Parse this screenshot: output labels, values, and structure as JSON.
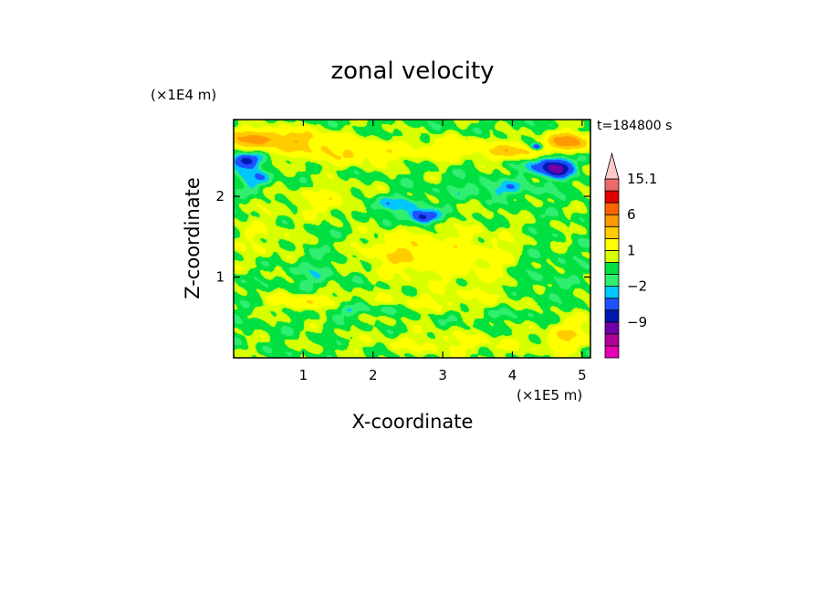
{
  "chart_data": {
    "type": "heatmap",
    "title": "zonal velocity",
    "xlabel": "X-coordinate",
    "ylabel": "Z-coordinate",
    "x_scale_label": "(×1E5 m)",
    "y_scale_label": "(×1E4 m)",
    "time_label": "t=184800 s",
    "xlim": [
      0,
      5.12
    ],
    "ylim": [
      0,
      2.95
    ],
    "x_ticks": [
      {
        "value": 1,
        "label": "1"
      },
      {
        "value": 2,
        "label": "2"
      },
      {
        "value": 3,
        "label": "3"
      },
      {
        "value": 4,
        "label": "4"
      },
      {
        "value": 5,
        "label": "5"
      }
    ],
    "y_ticks": [
      {
        "value": 1,
        "label": "1"
      },
      {
        "value": 2,
        "label": "2"
      }
    ],
    "colorbar": {
      "levels": [
        -15,
        -12,
        -9,
        -6,
        -4,
        -2,
        -1,
        0,
        1,
        2,
        4,
        6,
        9,
        12,
        15.1
      ],
      "colors": [
        "#e800b4",
        "#b0009a",
        "#7000a8",
        "#0018b0",
        "#2050ff",
        "#00c8ff",
        "#30ee70",
        "#00e040",
        "#d8ff00",
        "#ffff00",
        "#ffcc00",
        "#ff9a00",
        "#ff6400",
        "#e00000",
        "#ee6a6a",
        "#fcc8c8"
      ],
      "extend": "max",
      "tick_labels": [
        {
          "value": 15.1,
          "label": "15.1"
        },
        {
          "value": 6,
          "label": "6"
        },
        {
          "value": 1,
          "label": "1"
        },
        {
          "value": -2,
          "label": "−2"
        },
        {
          "value": -9,
          "label": "−9"
        }
      ]
    },
    "field_features": [
      {
        "x": 0.15,
        "z": 2.45,
        "sx": 0.22,
        "sz": 0.09,
        "v": -6
      },
      {
        "x": 0.3,
        "z": 2.22,
        "sx": 0.25,
        "sz": 0.12,
        "v": -2.5
      },
      {
        "x": 0.25,
        "z": 2.72,
        "sx": 0.45,
        "sz": 0.12,
        "v": 5
      },
      {
        "x": 0.9,
        "z": 2.7,
        "sx": 0.55,
        "sz": 0.14,
        "v": 3.5
      },
      {
        "x": 1.7,
        "z": 2.55,
        "sx": 0.9,
        "sz": 0.16,
        "v": 3
      },
      {
        "x": 3.3,
        "z": 2.6,
        "sx": 0.7,
        "sz": 0.13,
        "v": 2.5
      },
      {
        "x": 4.1,
        "z": 2.55,
        "sx": 0.4,
        "sz": 0.1,
        "v": 4
      },
      {
        "x": 4.8,
        "z": 2.68,
        "sx": 0.3,
        "sz": 0.12,
        "v": 7
      },
      {
        "x": 4.35,
        "z": 2.62,
        "sx": 0.08,
        "sz": 0.04,
        "v": -6
      },
      {
        "x": 4.62,
        "z": 2.35,
        "sx": 0.2,
        "sz": 0.1,
        "v": -7
      },
      {
        "x": 4.45,
        "z": 2.42,
        "sx": 0.35,
        "sz": 0.16,
        "v": -2.5
      },
      {
        "x": 3.8,
        "z": 2.1,
        "sx": 0.6,
        "sz": 0.1,
        "v": -2
      },
      {
        "x": 2.7,
        "z": 1.75,
        "sx": 0.2,
        "sz": 0.08,
        "v": -6
      },
      {
        "x": 2.2,
        "z": 1.9,
        "sx": 0.6,
        "sz": 0.11,
        "v": -2.2
      },
      {
        "x": 1.4,
        "z": 1.95,
        "sx": 0.55,
        "sz": 0.18,
        "v": 2.5
      },
      {
        "x": 2.4,
        "z": 1.3,
        "sx": 0.55,
        "sz": 0.25,
        "v": 3.2
      },
      {
        "x": 3.4,
        "z": 1.25,
        "sx": 0.7,
        "sz": 0.4,
        "v": 2
      },
      {
        "x": 1.8,
        "z": 0.6,
        "sx": 0.7,
        "sz": 0.08,
        "v": -2.2
      },
      {
        "x": 3.5,
        "z": 0.55,
        "sx": 0.9,
        "sz": 0.1,
        "v": -1.3
      },
      {
        "x": 2.8,
        "z": 0.65,
        "sx": 1.4,
        "sz": 0.18,
        "v": 1.6
      },
      {
        "x": 1.0,
        "z": 0.7,
        "sx": 0.45,
        "sz": 0.12,
        "v": 3
      },
      {
        "x": 3.2,
        "z": 0.18,
        "sx": 1.4,
        "sz": 0.15,
        "v": 1.6
      },
      {
        "x": 4.8,
        "z": 0.3,
        "sx": 0.3,
        "sz": 0.2,
        "v": 3
      },
      {
        "x": 0.4,
        "z": 1.5,
        "sx": 0.45,
        "sz": 0.35,
        "v": 1.2
      },
      {
        "x": 1.1,
        "z": 1.0,
        "sx": 0.4,
        "sz": 0.3,
        "v": -1
      },
      {
        "x": 4.4,
        "z": 1.0,
        "sx": 0.35,
        "sz": 0.35,
        "v": -0.8
      }
    ]
  }
}
